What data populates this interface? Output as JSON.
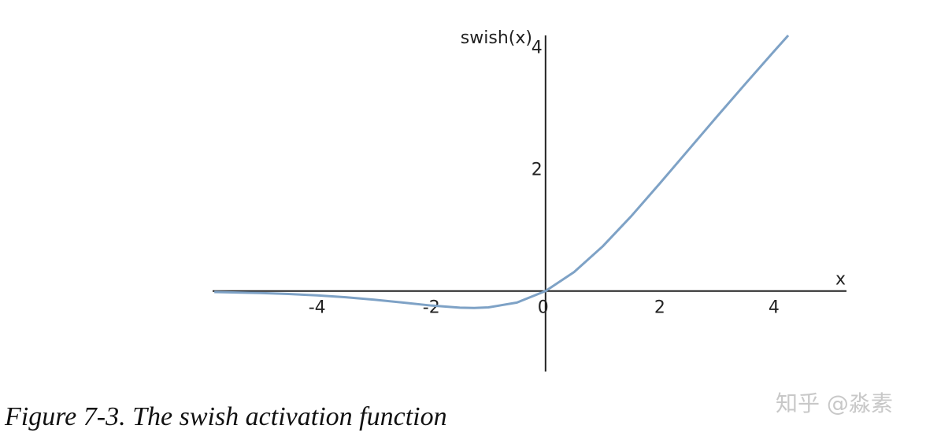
{
  "chart_data": {
    "type": "line",
    "caption": "Figure 7-3. The swish activation function",
    "watermark": "知乎 @淼素",
    "xlabel": "x",
    "ylabel": "swish(x)",
    "x": [
      -5.8,
      -5,
      -4.5,
      -4,
      -3.5,
      -3,
      -2.5,
      -2,
      -1.5,
      -1.25,
      -1,
      -0.5,
      0,
      0.5,
      1,
      1.5,
      2,
      2.5,
      3,
      3.5,
      4,
      4.25
    ],
    "series": [
      {
        "name": "swish(x)",
        "color": "#7ea2c6",
        "values": [
          -0.0175,
          -0.0335,
          -0.0495,
          -0.072,
          -0.1026,
          -0.1423,
          -0.1896,
          -0.2384,
          -0.2736,
          -0.2784,
          -0.2689,
          -0.1888,
          0,
          0.311,
          0.731,
          1.226,
          1.762,
          2.31,
          2.858,
          3.397,
          3.928,
          4.19
        ]
      }
    ],
    "xlim": [
      -5.83,
      5.27
    ],
    "ylim": [
      -1.32,
      4.19
    ],
    "xticks": [
      -4,
      -2,
      0,
      2,
      4
    ],
    "yticks": [
      2,
      4
    ],
    "grid": false
  }
}
